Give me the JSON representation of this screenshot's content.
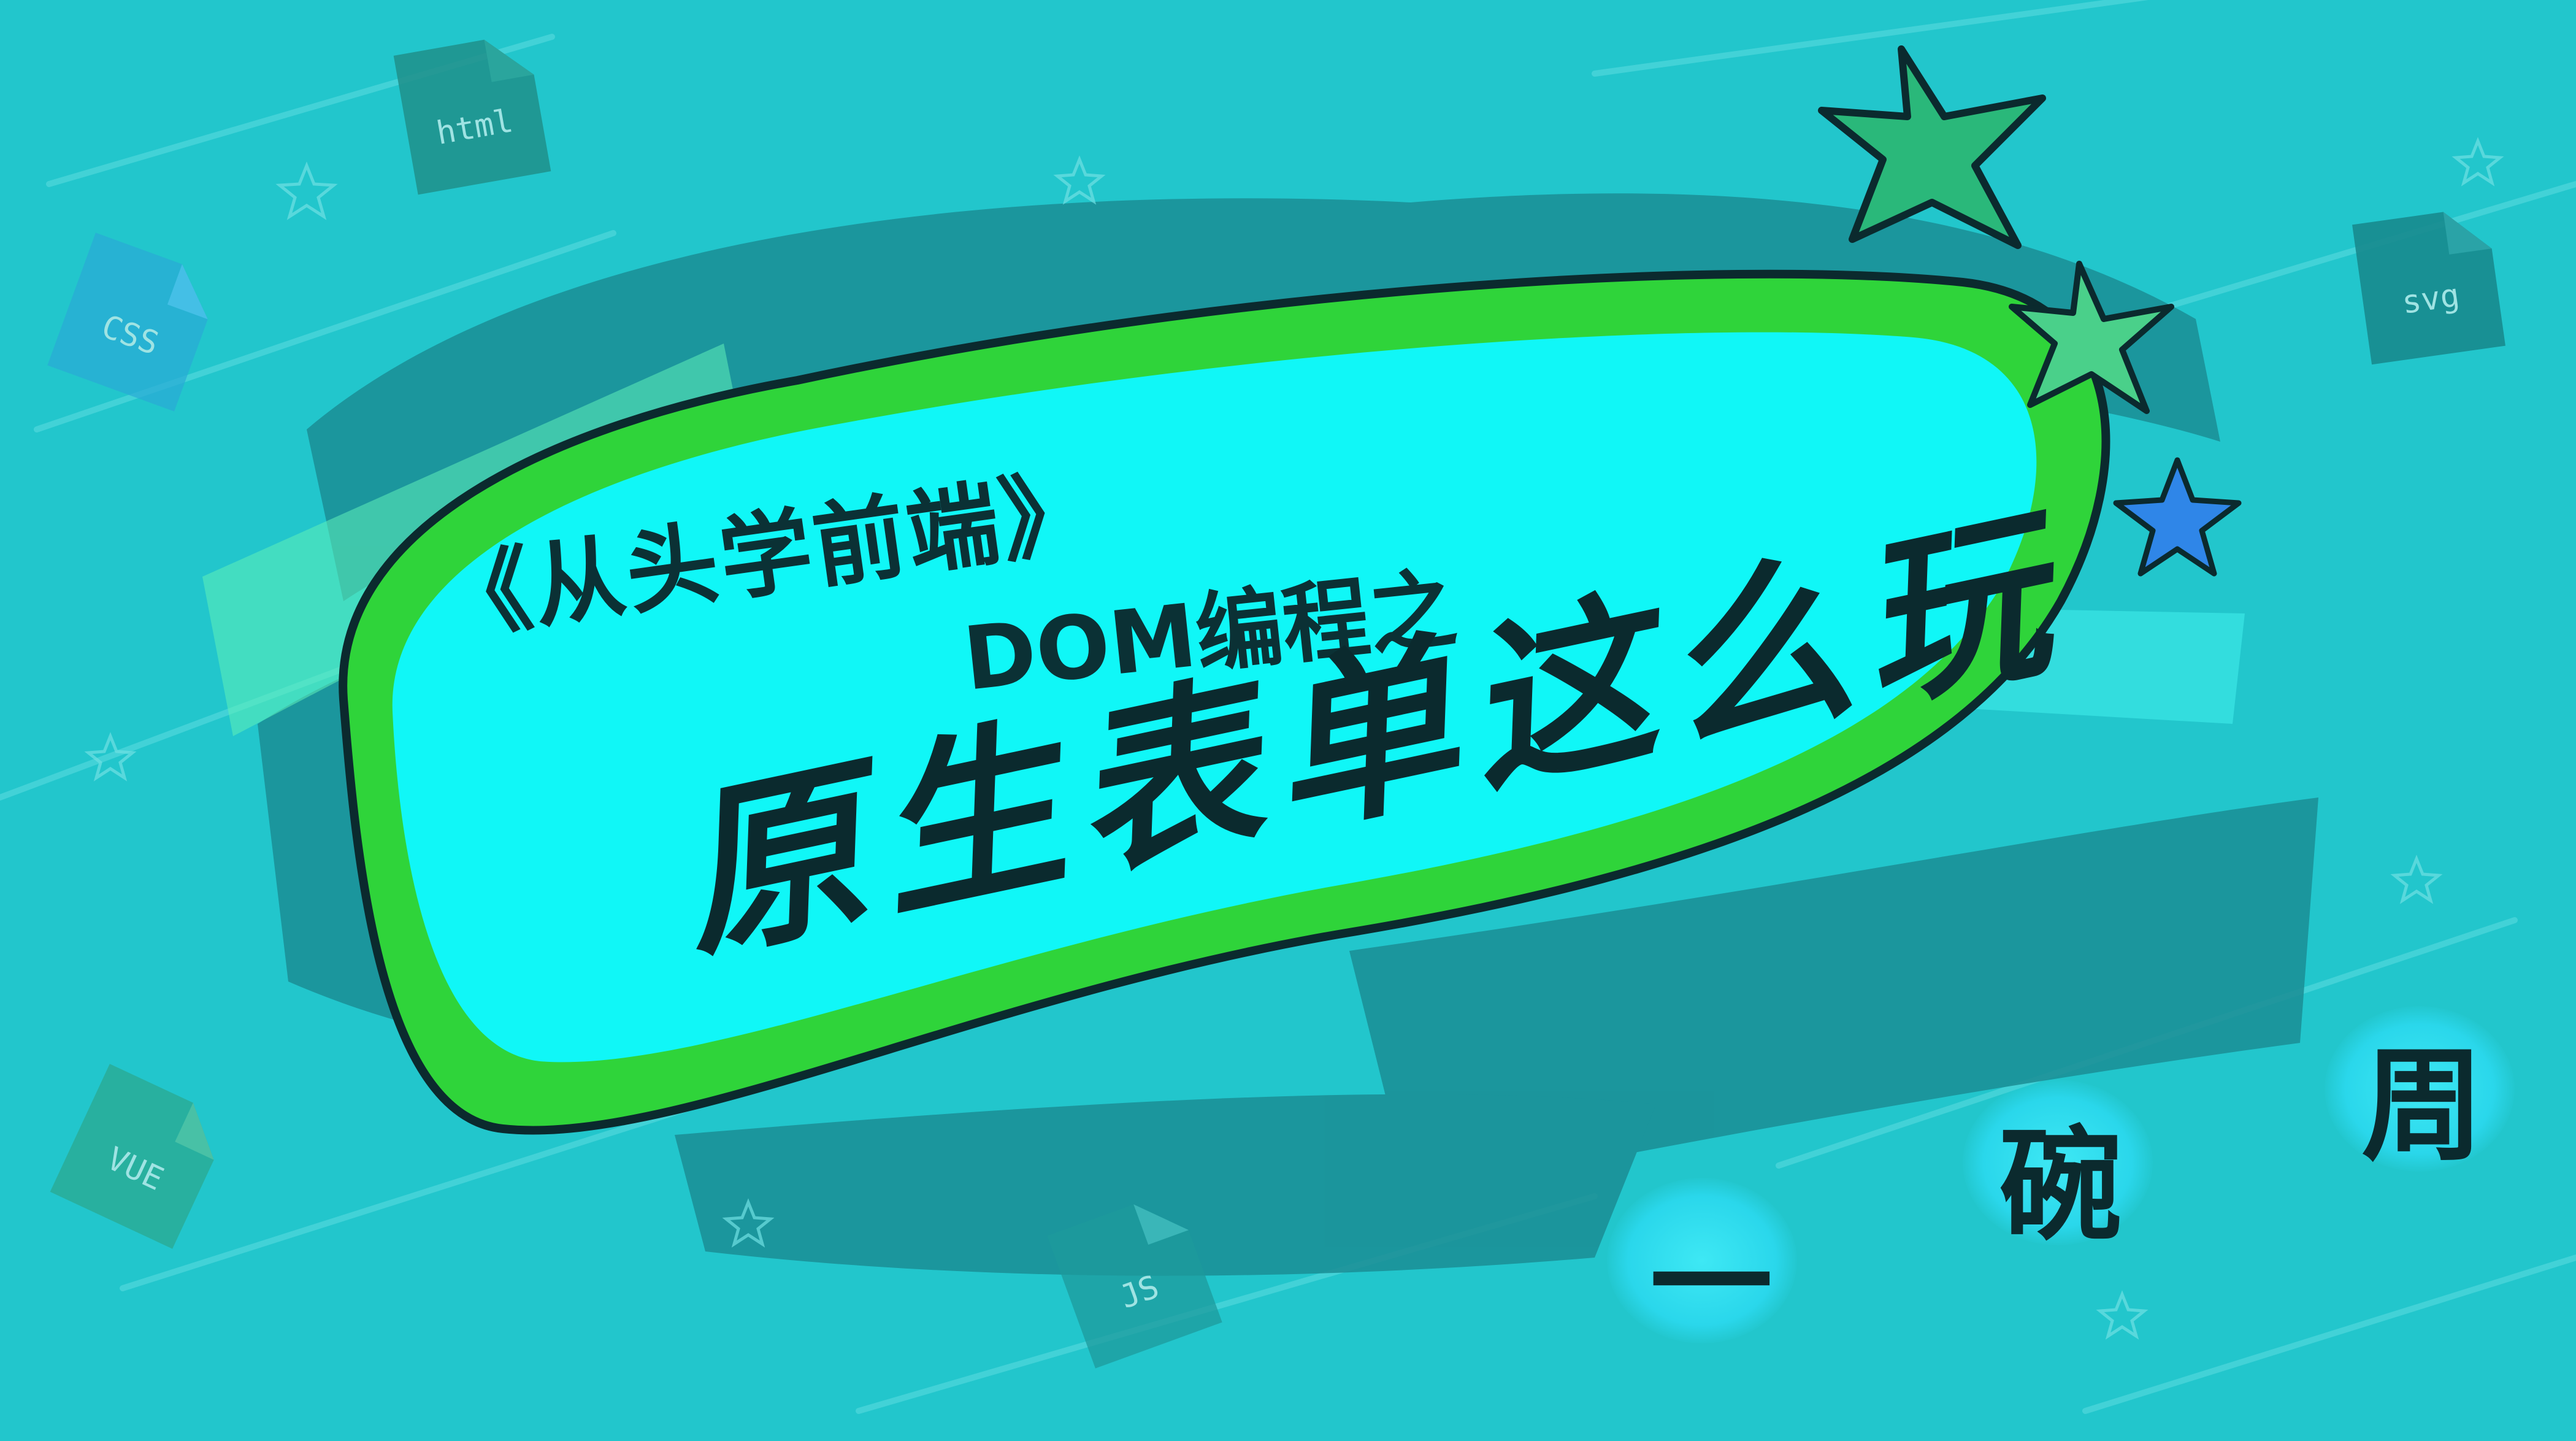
{
  "cover": {
    "series": "《从头学前端》",
    "topic": "DOM编程之",
    "title": "原生表单这么玩",
    "author": [
      "一",
      "碗",
      "周"
    ]
  },
  "file_icons": {
    "html": "html",
    "css": "CSS",
    "svg": "svg",
    "vue": "VUE",
    "js": "JS"
  },
  "colors": {
    "background": "#22c6cc",
    "frame_green": "#2fd43a",
    "frame_inner": "#10f7f7",
    "ink": "#0b2a2e",
    "brush_dark": "#1a7f86",
    "star_green": "#2ab87a",
    "star_blue": "#2f86e8"
  },
  "decor": {
    "stars": [
      "star-icon",
      "star-icon",
      "star-icon"
    ],
    "files": [
      "file-html-icon",
      "file-css-icon",
      "file-svg-icon",
      "file-vue-icon",
      "file-js-icon"
    ]
  }
}
